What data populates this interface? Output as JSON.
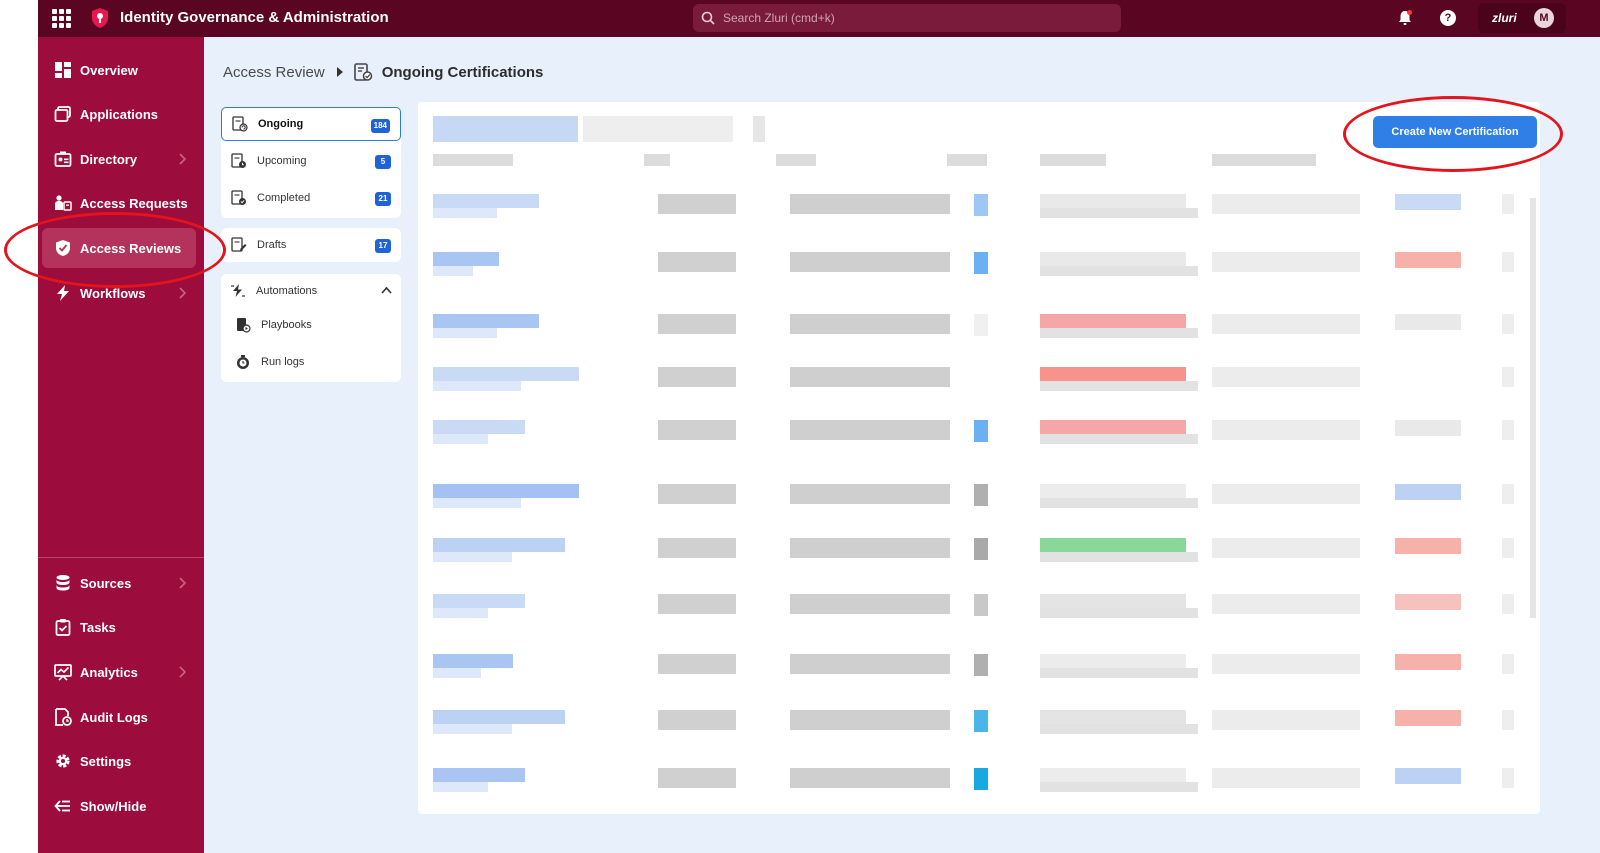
{
  "app": {
    "title": "Identity Governance & Administration",
    "search_placeholder": "Search Zluri (cmd+k)",
    "org_name": "zluri",
    "avatar_initial": "M"
  },
  "sidebar": {
    "items": [
      {
        "label": "Overview",
        "icon": "overview-icon"
      },
      {
        "label": "Applications",
        "icon": "applications-icon"
      },
      {
        "label": "Directory",
        "icon": "directory-icon",
        "has_chevron": true
      },
      {
        "label": "Access Requests",
        "icon": "access-requests-icon"
      },
      {
        "label": "Access Reviews",
        "icon": "access-reviews-icon",
        "active": true
      },
      {
        "label": "Workflows",
        "icon": "workflows-icon",
        "has_chevron": true
      },
      {
        "label": "Sources",
        "icon": "sources-icon",
        "has_chevron": true
      },
      {
        "label": "Tasks",
        "icon": "tasks-icon"
      },
      {
        "label": "Analytics",
        "icon": "analytics-icon",
        "has_chevron": true
      },
      {
        "label": "Audit Logs",
        "icon": "audit-logs-icon"
      },
      {
        "label": "Settings",
        "icon": "settings-icon"
      },
      {
        "label": "Show/Hide",
        "icon": "show-hide-icon"
      }
    ]
  },
  "breadcrumb": {
    "root": "Access Review",
    "current": "Ongoing Certifications"
  },
  "subnav": {
    "ongoing": {
      "label": "Ongoing",
      "count": "184"
    },
    "upcoming": {
      "label": "Upcoming",
      "count": "5"
    },
    "completed": {
      "label": "Completed",
      "count": "21"
    },
    "drafts": {
      "label": "Drafts",
      "count": "17"
    },
    "automations": {
      "label": "Automations"
    },
    "playbooks": {
      "label": "Playbooks"
    },
    "run_logs": {
      "label": "Run logs"
    }
  },
  "actions": {
    "create_label": "Create New Certification"
  },
  "colors": {
    "topbar": "#5a0522",
    "sidebar": "#9c0c3c",
    "accent_blue": "#2f7fe6",
    "annotation_red": "#e3141b"
  }
}
